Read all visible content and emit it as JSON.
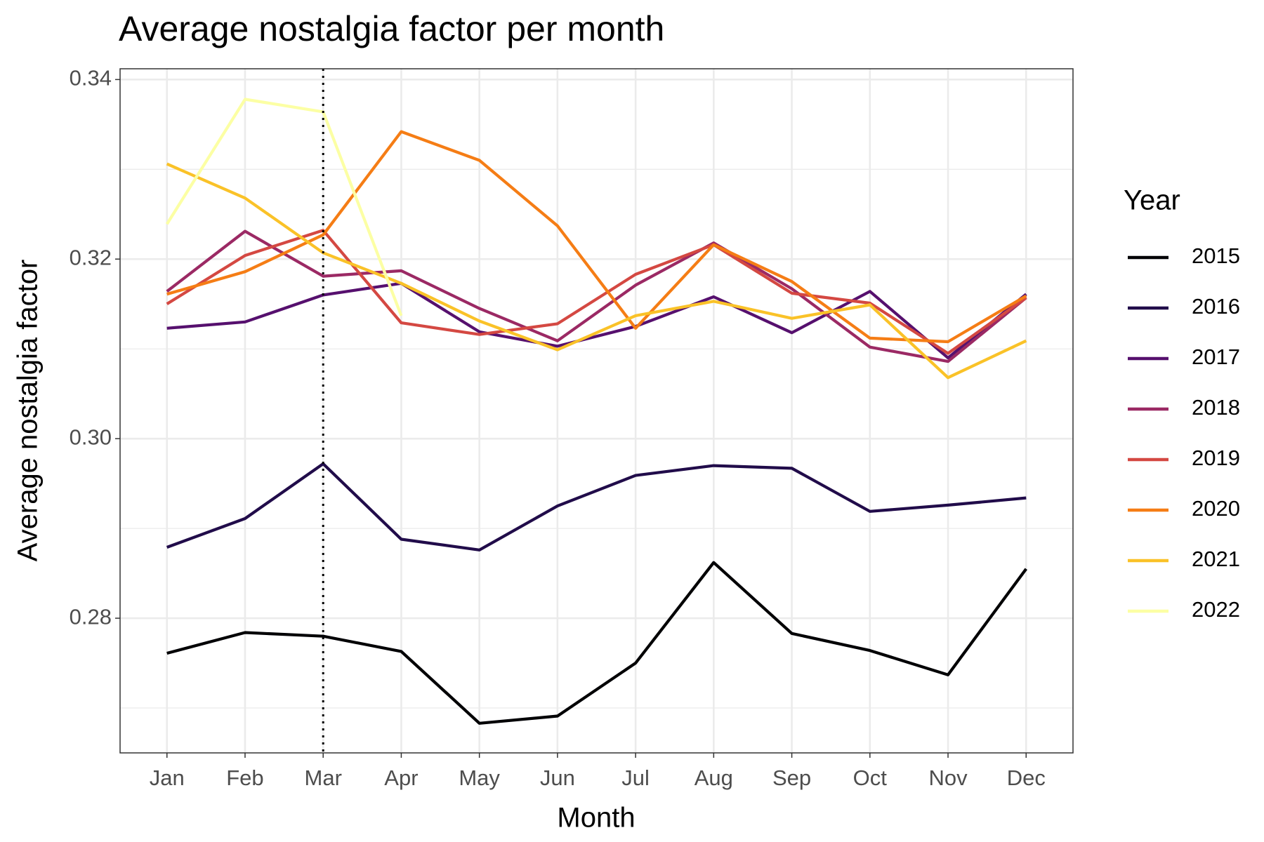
{
  "chart_data": {
    "type": "line",
    "title": "Average nostalgia factor per month",
    "x_label": "Month",
    "y_label": "Average nostalgia factor",
    "legend_title": "Year",
    "legend_position": "right",
    "categories": [
      "Jan",
      "Feb",
      "Mar",
      "Apr",
      "May",
      "Jun",
      "Jul",
      "Aug",
      "Sep",
      "Oct",
      "Nov",
      "Dec"
    ],
    "vline": "Mar",
    "ylim": [
      0.265,
      0.3412
    ],
    "yticks": [
      {
        "value": 0.28,
        "label": "0.28"
      },
      {
        "value": 0.3,
        "label": "0.30"
      },
      {
        "value": 0.32,
        "label": "0.32"
      },
      {
        "value": 0.34,
        "label": "0.34"
      }
    ],
    "yminorticks": [
      0.27,
      0.29,
      0.31,
      0.33
    ],
    "grid": true,
    "series": [
      {
        "name": "2015",
        "color": "#000004",
        "values": [
          0.2761,
          0.2784,
          0.278,
          0.2763,
          0.2683,
          0.2691,
          0.275,
          0.2862,
          0.2783,
          0.2764,
          0.2737,
          0.2855
        ]
      },
      {
        "name": "2016",
        "color": "#210c4a",
        "values": [
          0.2879,
          0.2911,
          0.2972,
          0.2888,
          0.2876,
          0.2925,
          0.2959,
          0.297,
          0.2967,
          0.2919,
          0.2926,
          0.2934
        ]
      },
      {
        "name": "2017",
        "color": "#56106e",
        "values": [
          0.3123,
          0.313,
          0.316,
          0.3173,
          0.3119,
          0.3103,
          0.3125,
          0.3158,
          0.3118,
          0.3164,
          0.309,
          0.3161
        ]
      },
      {
        "name": "2018",
        "color": "#9b2964",
        "values": [
          0.3164,
          0.3231,
          0.3181,
          0.3187,
          0.3145,
          0.3109,
          0.3171,
          0.3218,
          0.3167,
          0.3102,
          0.3086,
          0.3157
        ]
      },
      {
        "name": "2019",
        "color": "#d44842",
        "values": [
          0.315,
          0.3204,
          0.3232,
          0.3129,
          0.3116,
          0.3128,
          0.3183,
          0.3216,
          0.3162,
          0.3151,
          0.3095,
          0.3157
        ]
      },
      {
        "name": "2020",
        "color": "#f57d15",
        "values": [
          0.3161,
          0.3186,
          0.3227,
          0.3342,
          0.331,
          0.3237,
          0.3123,
          0.3216,
          0.3175,
          0.3112,
          0.3108,
          0.3159
        ]
      },
      {
        "name": "2021",
        "color": "#fac228",
        "values": [
          0.3306,
          0.3268,
          0.3207,
          0.3173,
          0.3131,
          0.3099,
          0.3137,
          0.3153,
          0.3134,
          0.3149,
          0.3068,
          0.3109
        ]
      },
      {
        "name": "2022",
        "color": "#fcffa4",
        "values": [
          0.3239,
          0.3378,
          0.3364,
          0.3137,
          null,
          null,
          null,
          null,
          null,
          null,
          null,
          null
        ]
      }
    ]
  }
}
